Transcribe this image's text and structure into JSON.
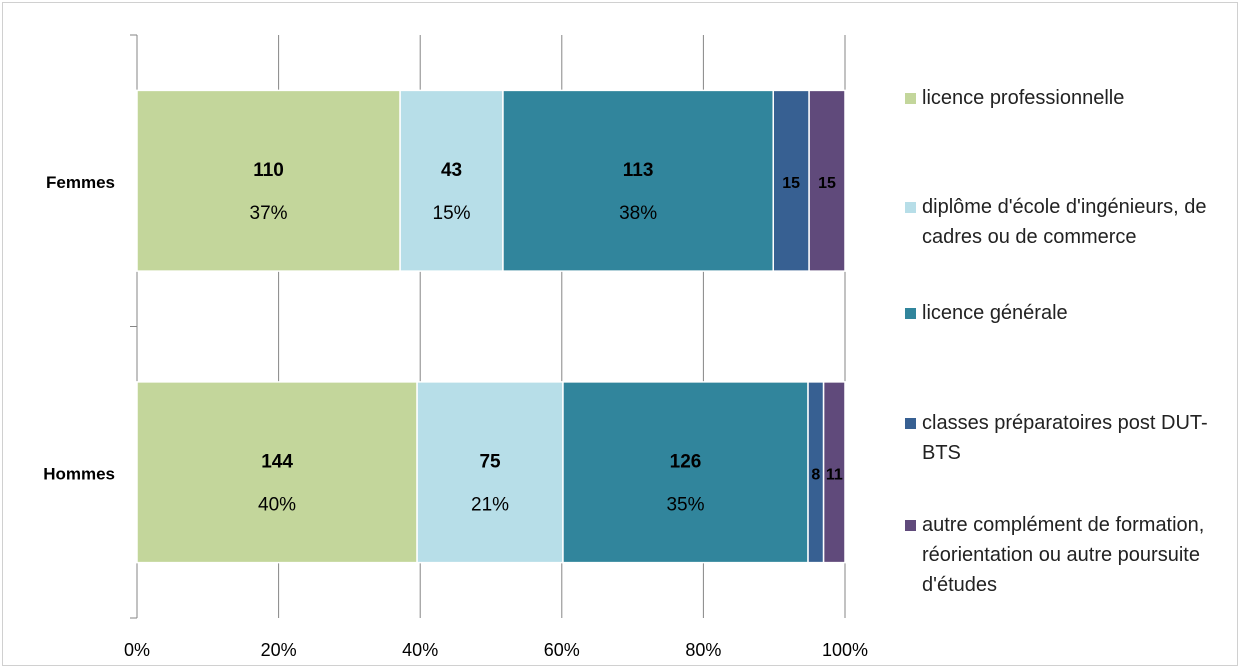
{
  "chart_data": {
    "type": "bar",
    "orientation": "horizontal",
    "stacking": "percent",
    "categories": [
      "Femmes",
      "Hommes"
    ],
    "series": [
      {
        "name": "licence professionnelle",
        "color": "#c3d69b",
        "values": [
          110,
          144
        ],
        "percent_labels": [
          "37%",
          "40%"
        ]
      },
      {
        "name": "diplôme d'école d'ingénieurs, de cadres ou de commerce",
        "color": "#b7dee8",
        "values": [
          43,
          75
        ],
        "percent_labels": [
          "15%",
          "21%"
        ]
      },
      {
        "name": "licence générale",
        "color": "#31859c",
        "values": [
          113,
          126
        ],
        "percent_labels": [
          "38%",
          "35%"
        ]
      },
      {
        "name": "classes préparatoires post DUT-BTS",
        "color": "#376092",
        "values": [
          15,
          8
        ],
        "percent_labels": [
          null,
          null
        ]
      },
      {
        "name": "autre complément de formation, réorientation ou autre poursuite d'études",
        "color": "#604a7b",
        "values": [
          15,
          11
        ],
        "percent_labels": [
          null,
          null
        ]
      }
    ],
    "xlim": [
      0,
      100
    ],
    "xticks": [
      {
        "value": 0,
        "label": "0%"
      },
      {
        "value": 20,
        "label": "20%"
      },
      {
        "value": 40,
        "label": "40%"
      },
      {
        "value": 60,
        "label": "60%"
      },
      {
        "value": 80,
        "label": "80%"
      },
      {
        "value": 100,
        "label": "100%"
      }
    ],
    "grid": true,
    "legend": "right"
  }
}
